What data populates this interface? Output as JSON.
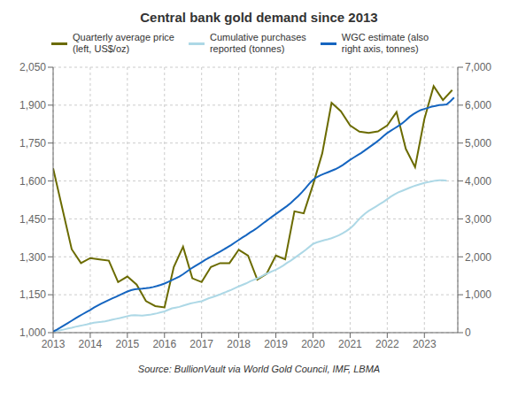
{
  "chart_data": {
    "type": "line",
    "title": "Central bank gold demand since 2013",
    "annotations": [
      "Source: BullionVault via World Gold Council, IMF, LBMA"
    ],
    "xlim": [
      2013,
      2023.9
    ],
    "xticks": [
      2013,
      2014,
      2015,
      2016,
      2017,
      2018,
      2019,
      2020,
      2021,
      2022,
      2023
    ],
    "ylim": [
      1000,
      2050
    ],
    "yticks": [
      {
        "value": 1000,
        "label": "1,000"
      },
      {
        "value": 1150,
        "label": "1,150"
      },
      {
        "value": 1300,
        "label": "1,300"
      },
      {
        "value": 1450,
        "label": "1,450"
      },
      {
        "value": 1600,
        "label": "1,600"
      },
      {
        "value": 1750,
        "label": "1,750"
      },
      {
        "value": 1900,
        "label": "1,900"
      },
      {
        "value": 2050,
        "label": "2,050"
      }
    ],
    "y2lim": [
      0,
      7000
    ],
    "y2ticks": [
      0,
      {
        "value": 1000,
        "label": "1,000"
      },
      {
        "value": 2000,
        "label": "2,000"
      },
      {
        "value": 3000,
        "label": "3,000"
      },
      {
        "value": 4000,
        "label": "4,000"
      },
      {
        "value": 5000,
        "label": "5,000"
      },
      {
        "value": 6000,
        "label": "6,000"
      },
      {
        "value": 7000,
        "label": "7,000"
      }
    ],
    "grid": true,
    "legend": "upper left",
    "series": [
      {
        "name": "Quarterly average price\n(left, US$/oz)",
        "color": "#6b6b00",
        "axis": "y",
        "x": [
          2013.0,
          2013.25,
          2013.5,
          2013.75,
          2014.0,
          2014.25,
          2014.5,
          2014.75,
          2015.0,
          2015.25,
          2015.5,
          2015.75,
          2016.0,
          2016.25,
          2016.5,
          2016.75,
          2017.0,
          2017.25,
          2017.5,
          2017.75,
          2018.0,
          2018.25,
          2018.5,
          2018.75,
          2019.0,
          2019.25,
          2019.5,
          2019.75,
          2020.0,
          2020.25,
          2020.5,
          2020.75,
          2021.0,
          2021.25,
          2021.5,
          2021.75,
          2022.0,
          2022.25,
          2022.5,
          2022.75,
          2023.0,
          2023.25,
          2023.5,
          2023.75
        ],
        "values": [
          1650,
          1490,
          1330,
          1275,
          1295,
          1290,
          1285,
          1200,
          1222,
          1190,
          1125,
          1105,
          1100,
          1260,
          1340,
          1215,
          1200,
          1260,
          1275,
          1275,
          1328,
          1305,
          1210,
          1233,
          1305,
          1290,
          1480,
          1472,
          1585,
          1710,
          1909,
          1876,
          1820,
          1795,
          1790,
          1796,
          1820,
          1873,
          1727,
          1655,
          1845,
          1975,
          1920,
          1960
        ]
      },
      {
        "name": "Cumulative purchases\nreported (tonnes)",
        "color": "#add8e6",
        "axis": "y2",
        "x": [
          2013.0,
          2013.1,
          2013.2,
          2013.3,
          2013.4,
          2013.5,
          2013.6,
          2013.7,
          2013.8,
          2013.9,
          2014.0,
          2014.1,
          2014.2,
          2014.3,
          2014.4,
          2014.5,
          2014.6,
          2014.7,
          2014.8,
          2014.9,
          2015.0,
          2015.1,
          2015.2,
          2015.3,
          2015.4,
          2015.5,
          2015.6,
          2015.7,
          2015.8,
          2015.9,
          2016.0,
          2016.1,
          2016.2,
          2016.3,
          2016.4,
          2016.5,
          2016.6,
          2016.7,
          2016.8,
          2016.9,
          2017.0,
          2017.1,
          2017.2,
          2017.3,
          2017.4,
          2017.5,
          2017.6,
          2017.7,
          2017.8,
          2017.9,
          2018.0,
          2018.1,
          2018.2,
          2018.3,
          2018.4,
          2018.5,
          2018.6,
          2018.7,
          2018.8,
          2018.9,
          2019.0,
          2019.1,
          2019.2,
          2019.3,
          2019.4,
          2019.5,
          2019.6,
          2019.7,
          2019.8,
          2019.9,
          2020.0,
          2020.1,
          2020.2,
          2020.3,
          2020.4,
          2020.5,
          2020.6,
          2020.7,
          2020.8,
          2020.9,
          2021.0,
          2021.1,
          2021.2,
          2021.3,
          2021.4,
          2021.5,
          2021.6,
          2021.7,
          2021.8,
          2021.9,
          2022.0,
          2022.1,
          2022.2,
          2022.3,
          2022.4,
          2022.5,
          2022.6,
          2022.7,
          2022.8,
          2022.9,
          2023.0,
          2023.1,
          2023.2,
          2023.3,
          2023.4,
          2023.5,
          2023.6
        ],
        "values": [
          30,
          45,
          62,
          85,
          110,
          130,
          155,
          175,
          195,
          215,
          240,
          260,
          275,
          285,
          300,
          320,
          345,
          365,
          385,
          410,
          435,
          455,
          460,
          455,
          450,
          460,
          470,
          490,
          510,
          535,
          560,
          600,
          640,
          660,
          680,
          710,
          740,
          770,
          790,
          810,
          830,
          870,
          910,
          940,
          975,
          1010,
          1050,
          1090,
          1130,
          1175,
          1220,
          1260,
          1300,
          1350,
          1390,
          1430,
          1480,
          1530,
          1575,
          1620,
          1660,
          1710,
          1770,
          1840,
          1900,
          1970,
          2040,
          2110,
          2180,
          2260,
          2340,
          2380,
          2410,
          2440,
          2460,
          2490,
          2530,
          2570,
          2620,
          2680,
          2750,
          2840,
          2950,
          3050,
          3140,
          3210,
          3270,
          3330,
          3390,
          3450,
          3520,
          3590,
          3650,
          3700,
          3740,
          3780,
          3820,
          3860,
          3890,
          3920,
          3950,
          3970,
          3990,
          4010,
          4020,
          4020,
          4010
        ]
      },
      {
        "name": "WGC estimate (also\nright axis, tonnes)",
        "color": "#1565c0",
        "axis": "y2",
        "x": [
          2013.0,
          2013.1,
          2013.2,
          2013.3,
          2013.4,
          2013.5,
          2013.6,
          2013.7,
          2013.8,
          2013.9,
          2014.0,
          2014.1,
          2014.2,
          2014.3,
          2014.4,
          2014.5,
          2014.6,
          2014.7,
          2014.8,
          2014.9,
          2015.0,
          2015.1,
          2015.2,
          2015.3,
          2015.4,
          2015.5,
          2015.6,
          2015.7,
          2015.8,
          2015.9,
          2016.0,
          2016.1,
          2016.2,
          2016.3,
          2016.4,
          2016.5,
          2016.6,
          2016.7,
          2016.8,
          2016.9,
          2017.0,
          2017.1,
          2017.2,
          2017.3,
          2017.4,
          2017.5,
          2017.6,
          2017.7,
          2017.8,
          2017.9,
          2018.0,
          2018.1,
          2018.2,
          2018.3,
          2018.4,
          2018.5,
          2018.6,
          2018.7,
          2018.8,
          2018.9,
          2019.0,
          2019.1,
          2019.2,
          2019.3,
          2019.4,
          2019.5,
          2019.6,
          2019.7,
          2019.8,
          2019.9,
          2020.0,
          2020.1,
          2020.2,
          2020.3,
          2020.4,
          2020.5,
          2020.6,
          2020.7,
          2020.8,
          2020.9,
          2021.0,
          2021.1,
          2021.2,
          2021.3,
          2021.4,
          2021.5,
          2021.6,
          2021.7,
          2021.8,
          2021.9,
          2022.0,
          2022.1,
          2022.2,
          2022.3,
          2022.4,
          2022.5,
          2022.6,
          2022.7,
          2022.8,
          2022.9,
          2023.0,
          2023.1,
          2023.2,
          2023.3,
          2023.4,
          2023.5,
          2023.6,
          2023.7,
          2023.8
        ],
        "values": [
          30,
          80,
          135,
          195,
          255,
          315,
          375,
          435,
          490,
          545,
          600,
          660,
          715,
          765,
          815,
          860,
          905,
          950,
          995,
          1040,
          1085,
          1120,
          1145,
          1155,
          1160,
          1170,
          1185,
          1205,
          1230,
          1260,
          1295,
          1340,
          1385,
          1430,
          1480,
          1540,
          1610,
          1680,
          1740,
          1800,
          1860,
          1920,
          1975,
          2030,
          2085,
          2140,
          2195,
          2255,
          2315,
          2380,
          2445,
          2510,
          2570,
          2640,
          2700,
          2765,
          2840,
          2915,
          2985,
          3060,
          3130,
          3200,
          3270,
          3340,
          3420,
          3510,
          3600,
          3700,
          3810,
          3930,
          4030,
          4100,
          4150,
          4190,
          4230,
          4270,
          4310,
          4360,
          4420,
          4490,
          4560,
          4620,
          4680,
          4740,
          4810,
          4880,
          4950,
          5020,
          5100,
          5185,
          5265,
          5330,
          5390,
          5450,
          5520,
          5600,
          5690,
          5760,
          5820,
          5870,
          5900,
          5930,
          5960,
          5980,
          6000,
          6010,
          6020,
          6100,
          6200
        ]
      }
    ]
  }
}
